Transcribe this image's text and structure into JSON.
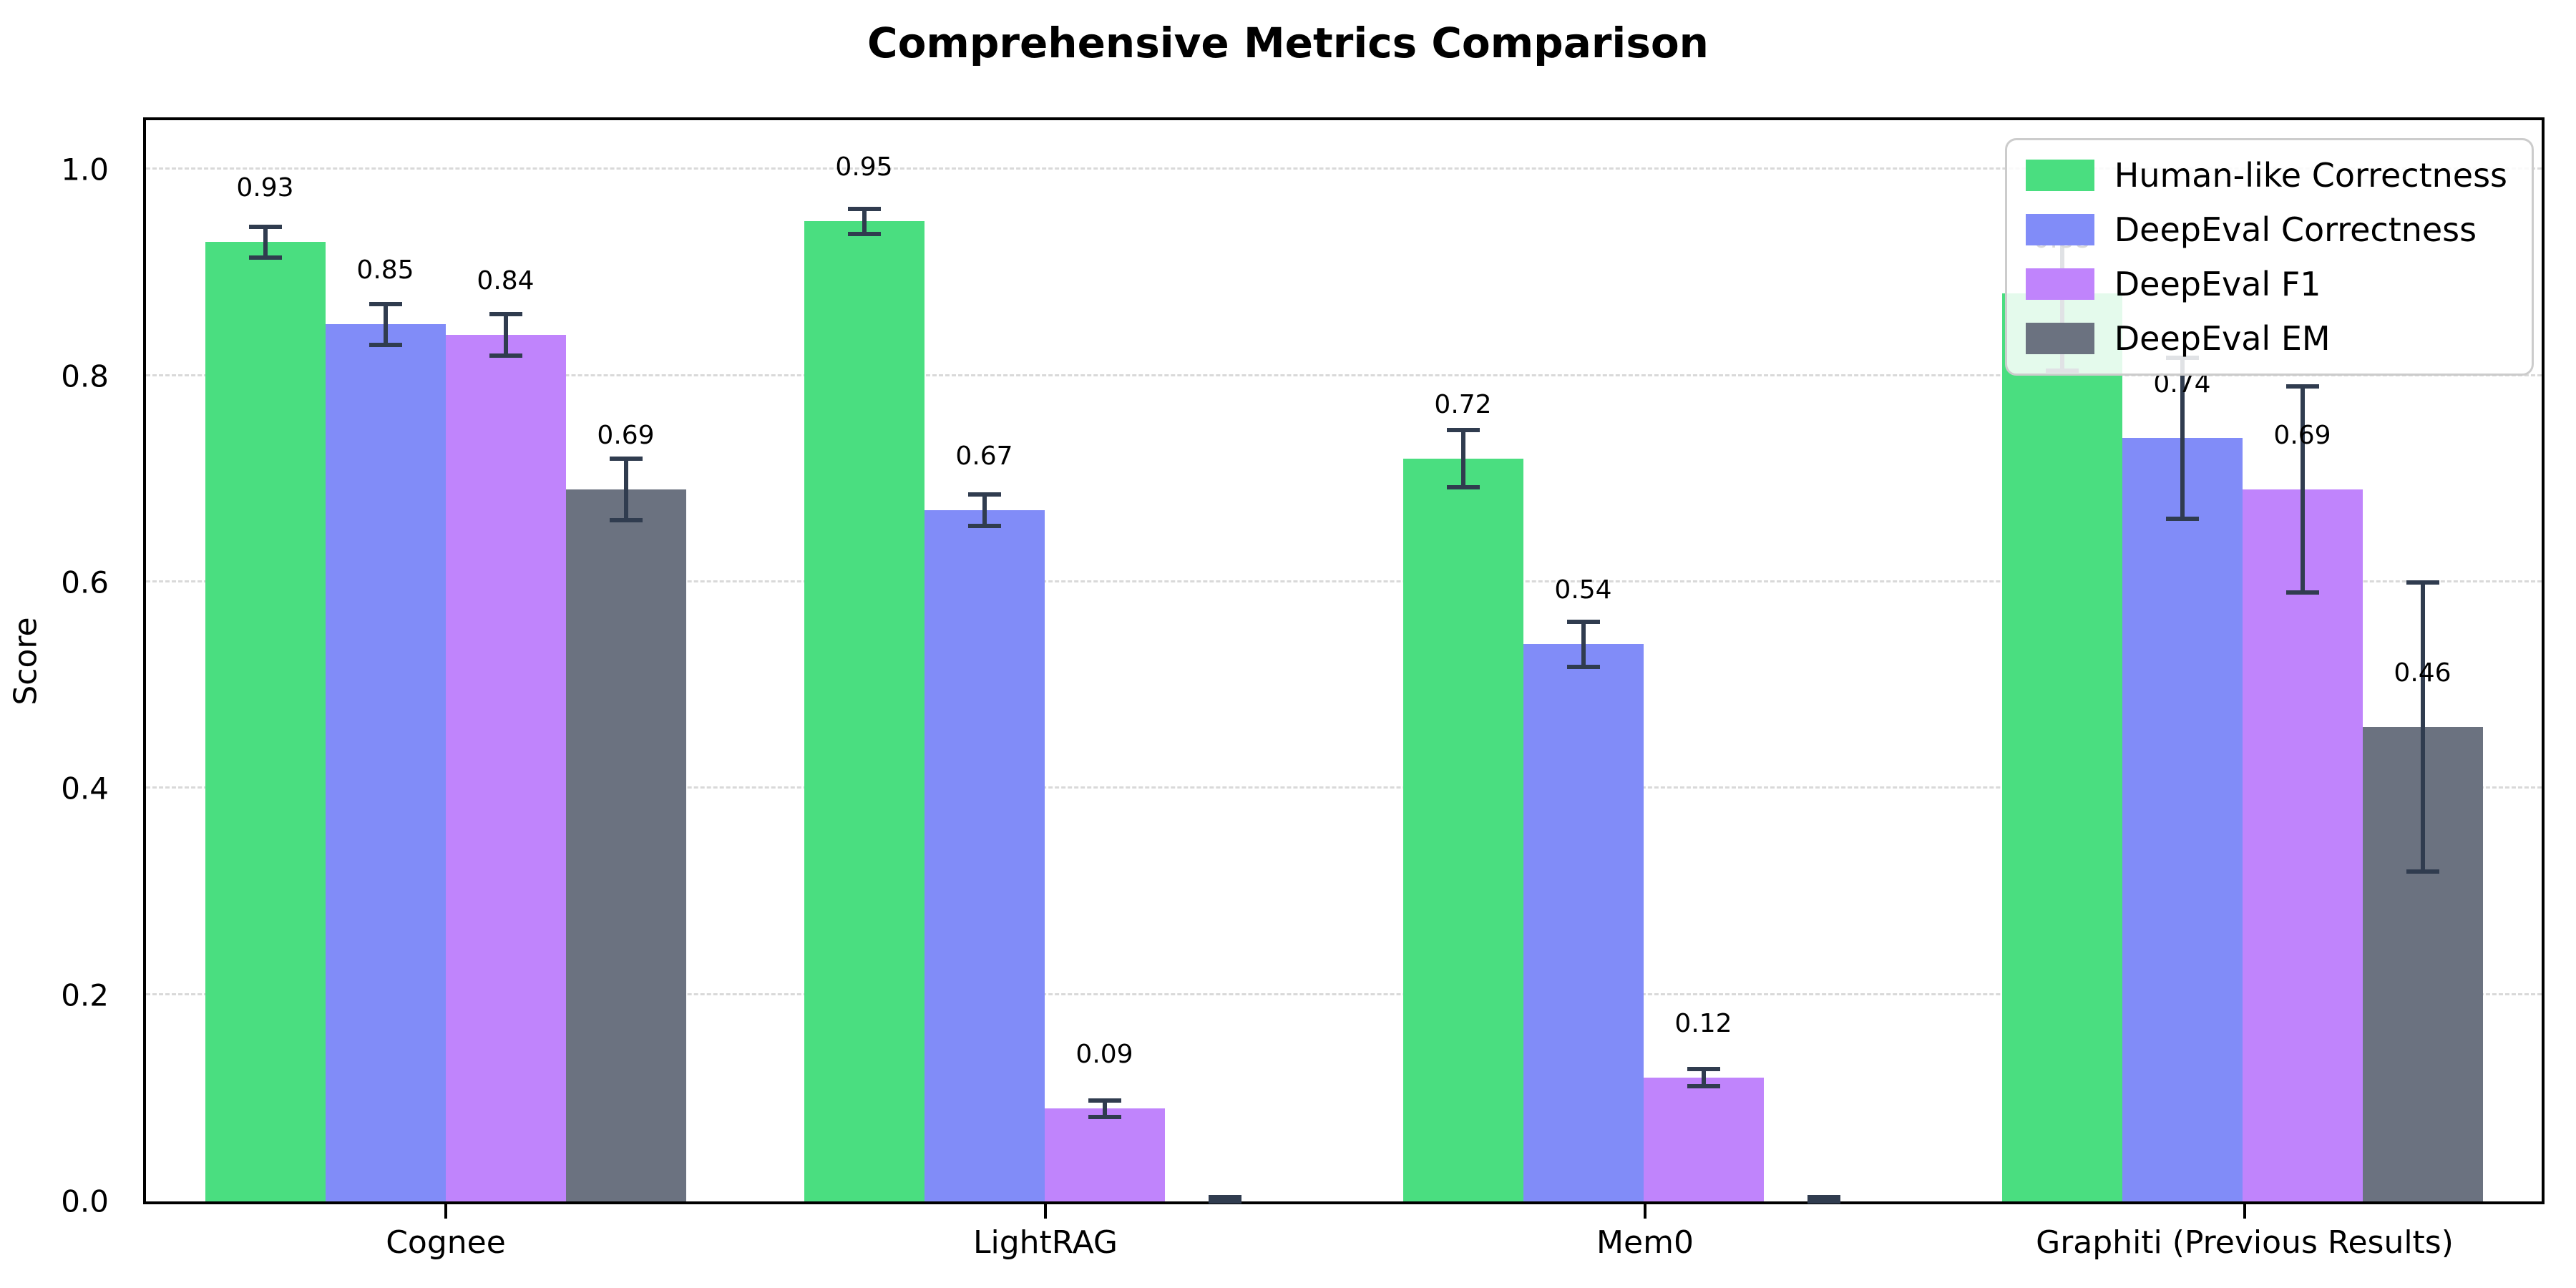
{
  "chart_data": {
    "type": "bar",
    "title": "Comprehensive Metrics Comparison",
    "ylabel": "Score",
    "categories": [
      "Cognee",
      "LightRAG",
      "Mem0",
      "Graphiti (Previous Results)"
    ],
    "series": [
      {
        "name": "Human-like Correctness",
        "color": "#4ade80",
        "values": [
          0.93,
          0.95,
          0.72,
          0.88
        ],
        "errors": [
          0.015,
          0.012,
          0.028,
          0.075
        ],
        "labels": [
          "0.93",
          "0.95",
          "0.72",
          "0.88"
        ]
      },
      {
        "name": "DeepEval Correctness",
        "color": "#818cf8",
        "values": [
          0.85,
          0.67,
          0.54,
          0.74
        ],
        "errors": [
          0.02,
          0.015,
          0.022,
          0.078
        ],
        "labels": [
          "0.85",
          "0.67",
          "0.54",
          "0.74"
        ]
      },
      {
        "name": "DeepEval F1",
        "color": "#c084fc",
        "values": [
          0.84,
          0.09,
          0.12,
          0.69
        ],
        "errors": [
          0.02,
          0.008,
          0.008,
          0.1
        ],
        "labels": [
          "0.84",
          "0.09",
          "0.12",
          "0.69"
        ]
      },
      {
        "name": "DeepEval EM",
        "color": "#6b7280",
        "values": [
          0.69,
          0.0,
          0.0,
          0.46
        ],
        "errors": [
          0.03,
          0.004,
          0.004,
          0.14
        ],
        "labels": [
          "0.69",
          "",
          "",
          "0.46"
        ]
      }
    ],
    "y_ticks": [
      "0.0",
      "0.2",
      "0.4",
      "0.6",
      "0.8",
      "1.0"
    ],
    "ylim": [
      0,
      1.048
    ],
    "grid": "horizontal-dashed",
    "legend_position": "upper-right",
    "error_bar_color": "#303c4f",
    "grid_color": "#d9d9d9",
    "bar_label_color": "#000000"
  }
}
